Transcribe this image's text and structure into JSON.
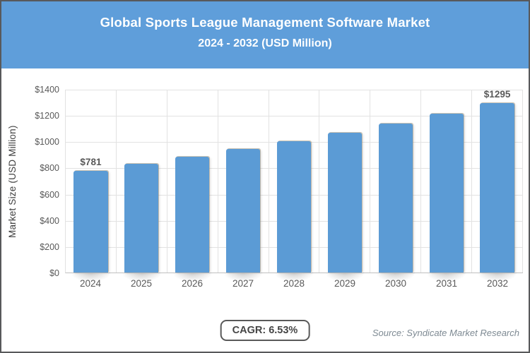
{
  "header": {
    "title_line1": "Global Sports League Management Software Market",
    "title_line2": "2024 - 2032 (USD Million)",
    "bg_color": "#5F9EDA",
    "text_color": "#FFFFFF"
  },
  "chart_data": {
    "type": "bar",
    "title": "Global Sports League Management Software Market 2024 - 2032 (USD Million)",
    "categories": [
      "2024",
      "2025",
      "2026",
      "2027",
      "2028",
      "2029",
      "2030",
      "2031",
      "2032"
    ],
    "values": [
      781,
      832,
      886,
      944,
      1006,
      1072,
      1142,
      1216,
      1295
    ],
    "visible_value_labels": {
      "2024": "$781",
      "2032": "$1295"
    },
    "xlabel": "",
    "ylabel": "Market Size (USD Million)",
    "ylim": [
      0,
      1400
    ],
    "ytick_step": 200,
    "ytick_prefix": "$",
    "ytick_labels": [
      "$0",
      "$200",
      "$400",
      "$600",
      "$800",
      "$1000",
      "$1200",
      "$1400"
    ],
    "grid": true,
    "legend": "none",
    "bar_color": "#5B9BD5",
    "gridline_color": "#E2E2E2",
    "tick_label_color": "#595959"
  },
  "footer": {
    "cagr_label": "CAGR: 6.53%",
    "source_label": "Source: Syndicate Market Research"
  }
}
